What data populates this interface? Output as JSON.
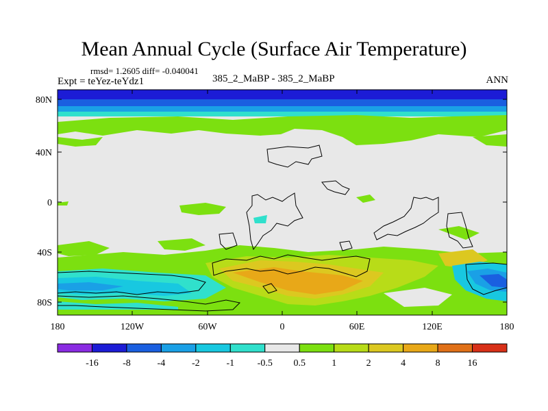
{
  "title": "Mean Annual Cycle (Surface Air Temperature)",
  "stats": "rmsd= 1.2605 diff= -0.040041",
  "experiment": "Expt = teYez-teYdz1",
  "case_label": "385_2_MaBP - 385_2_MaBP",
  "season": "ANN",
  "map": {
    "background": "#e8e8e8",
    "lat_ticks": [
      "80N",
      "40N",
      "0",
      "40S",
      "80S"
    ],
    "lon_ticks": [
      "180",
      "120W",
      "60W",
      "0",
      "60E",
      "120E",
      "180"
    ]
  },
  "colorbar": {
    "colors": [
      "#8a2be2",
      "#1c1cd6",
      "#1a5fe0",
      "#1aa0e6",
      "#18c8e0",
      "#30e0cc",
      "#e8e8e8",
      "#7ce010",
      "#b8dc18",
      "#dcc820",
      "#e8a818",
      "#e07018",
      "#d83018"
    ],
    "labels": [
      "-16",
      "-8",
      "-4",
      "-2",
      "-1",
      "-0.5",
      "0.5",
      "1",
      "2",
      "4",
      "8",
      "16"
    ]
  }
}
